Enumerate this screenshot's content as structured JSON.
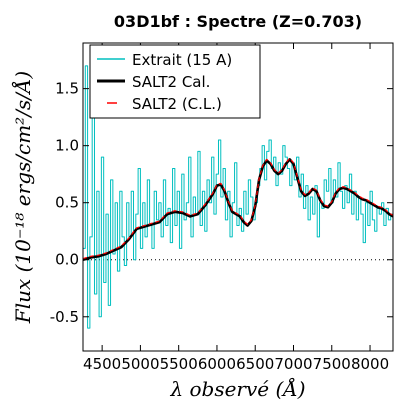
{
  "chart_data": {
    "type": "line",
    "title": "03D1bf : Spectre (Z=0.703)",
    "xlabel": "λ observé (Å)",
    "ylabel": "Flux (10⁻¹⁸ ergs/cm²/s/Å)",
    "xlim": [
      4250,
      8300
    ],
    "ylim": [
      -0.8,
      1.9
    ],
    "xticks": [
      4500,
      5000,
      5500,
      6000,
      6500,
      7000,
      7500,
      8000
    ],
    "xtick_labels": [
      "4500",
      "5000",
      "5500",
      "6000",
      "6500",
      "7000",
      "7500",
      "8000"
    ],
    "yticks": [
      -0.5,
      0.0,
      0.5,
      1.0,
      1.5
    ],
    "ytick_labels": [
      "-0.5",
      "0.0",
      "0.5",
      "1.0",
      "1.5"
    ],
    "zero_line": true,
    "legend_position": "top-left",
    "series": [
      {
        "name": "Extrait (15 A)",
        "color": "#00bfbf",
        "style": "steps",
        "x": [
          4250,
          4280,
          4310,
          4340,
          4370,
          4400,
          4430,
          4460,
          4490,
          4520,
          4550,
          4580,
          4610,
          4640,
          4670,
          4700,
          4730,
          4760,
          4790,
          4820,
          4850,
          4880,
          4910,
          4940,
          4970,
          5000,
          5030,
          5060,
          5090,
          5120,
          5150,
          5180,
          5210,
          5240,
          5270,
          5300,
          5330,
          5360,
          5390,
          5420,
          5450,
          5480,
          5510,
          5540,
          5570,
          5600,
          5630,
          5660,
          5690,
          5720,
          5750,
          5780,
          5810,
          5840,
          5870,
          5900,
          5930,
          5960,
          5990,
          6020,
          6050,
          6080,
          6110,
          6140,
          6170,
          6200,
          6230,
          6260,
          6290,
          6320,
          6350,
          6380,
          6410,
          6440,
          6470,
          6500,
          6530,
          6560,
          6590,
          6620,
          6650,
          6680,
          6710,
          6740,
          6770,
          6800,
          6830,
          6860,
          6890,
          6920,
          6950,
          6980,
          7010,
          7040,
          7070,
          7100,
          7130,
          7160,
          7190,
          7220,
          7250,
          7280,
          7310,
          7340,
          7370,
          7400,
          7430,
          7460,
          7490,
          7520,
          7550,
          7580,
          7610,
          7640,
          7670,
          7700,
          7730,
          7760,
          7790,
          7820,
          7850,
          7880,
          7910,
          7940,
          7970,
          8000,
          8030,
          8060,
          8090,
          8120,
          8150,
          8180,
          8210,
          8240,
          8270,
          8300
        ],
        "y": [
          0.1,
          1.7,
          -0.6,
          0.2,
          1.3,
          -0.3,
          0.6,
          -0.5,
          0.9,
          -0.2,
          0.4,
          -0.4,
          0.7,
          0.05,
          0.5,
          -0.1,
          0.6,
          0.2,
          -0.05,
          0.5,
          0.2,
          0.6,
          0.0,
          0.4,
          0.8,
          0.1,
          0.5,
          0.2,
          0.7,
          0.3,
          0.1,
          0.6,
          0.35,
          0.5,
          0.2,
          0.7,
          0.3,
          0.45,
          0.15,
          0.8,
          0.3,
          0.6,
          0.1,
          0.75,
          0.35,
          0.5,
          0.9,
          0.2,
          0.55,
          0.4,
          0.95,
          0.3,
          0.6,
          0.25,
          0.7,
          0.5,
          0.9,
          0.4,
          0.75,
          1.05,
          0.55,
          0.8,
          0.35,
          0.6,
          0.2,
          0.5,
          0.85,
          0.3,
          0.45,
          0.25,
          0.6,
          0.4,
          0.7,
          0.55,
          0.35,
          0.5,
          0.65,
          0.8,
          1.0,
          0.7,
          0.95,
          1.05,
          0.8,
          0.9,
          0.65,
          0.85,
          0.75,
          1.0,
          0.9,
          0.8,
          0.65,
          0.85,
          0.7,
          0.9,
          0.55,
          0.75,
          0.45,
          0.65,
          0.35,
          0.55,
          0.4,
          0.65,
          0.2,
          0.5,
          0.45,
          0.7,
          0.6,
          0.8,
          0.5,
          0.7,
          0.55,
          0.85,
          0.6,
          0.45,
          0.65,
          0.5,
          0.75,
          0.4,
          0.6,
          0.35,
          0.55,
          0.4,
          0.15,
          0.5,
          0.3,
          0.6,
          0.35,
          0.25,
          0.45,
          0.4,
          0.5,
          0.3,
          0.45,
          0.35,
          0.4,
          0.35
        ]
      },
      {
        "name": "SALT2 Cal.",
        "color": "#000000",
        "style": "solid",
        "x": [
          4250,
          4350,
          4450,
          4550,
          4650,
          4750,
          4850,
          4950,
          5050,
          5150,
          5250,
          5350,
          5450,
          5550,
          5650,
          5750,
          5850,
          5950,
          6000,
          6050,
          6100,
          6150,
          6200,
          6250,
          6300,
          6350,
          6400,
          6450,
          6500,
          6550,
          6600,
          6650,
          6700,
          6750,
          6800,
          6850,
          6900,
          6950,
          7000,
          7050,
          7100,
          7150,
          7200,
          7250,
          7300,
          7350,
          7400,
          7450,
          7500,
          7550,
          7600,
          7650,
          7700,
          7750,
          7800,
          7850,
          7900,
          7950,
          8000,
          8050,
          8100,
          8150,
          8200,
          8250,
          8300
        ],
        "y": [
          0.0,
          0.02,
          0.03,
          0.05,
          0.08,
          0.11,
          0.18,
          0.27,
          0.29,
          0.31,
          0.33,
          0.4,
          0.42,
          0.41,
          0.38,
          0.4,
          0.48,
          0.58,
          0.65,
          0.66,
          0.6,
          0.5,
          0.42,
          0.4,
          0.38,
          0.33,
          0.3,
          0.34,
          0.47,
          0.7,
          0.82,
          0.87,
          0.84,
          0.78,
          0.75,
          0.78,
          0.84,
          0.88,
          0.84,
          0.72,
          0.6,
          0.56,
          0.58,
          0.62,
          0.6,
          0.52,
          0.47,
          0.46,
          0.5,
          0.58,
          0.62,
          0.63,
          0.62,
          0.6,
          0.58,
          0.55,
          0.53,
          0.52,
          0.5,
          0.48,
          0.46,
          0.45,
          0.43,
          0.4,
          0.38
        ]
      },
      {
        "name": "SALT2 (C.L.)",
        "color": "#ff0000",
        "style": "dashed",
        "x": [
          4250,
          4350,
          4450,
          4550,
          4650,
          4750,
          4850,
          4950,
          5050,
          5150,
          5250,
          5350,
          5450,
          5550,
          5650,
          5750,
          5850,
          5950,
          6000,
          6050,
          6100,
          6150,
          6200,
          6250,
          6300,
          6350,
          6400,
          6450,
          6500,
          6550,
          6600,
          6650,
          6700,
          6750,
          6800,
          6850,
          6900,
          6950,
          7000,
          7050,
          7100,
          7150,
          7200,
          7250,
          7300,
          7350,
          7400,
          7450,
          7500,
          7550,
          7600,
          7650,
          7700,
          7750,
          7800,
          7850,
          7900,
          7950,
          8000,
          8050,
          8100,
          8150,
          8200,
          8250,
          8300
        ],
        "y": [
          0.01,
          0.03,
          0.04,
          0.06,
          0.09,
          0.12,
          0.19,
          0.28,
          0.3,
          0.32,
          0.34,
          0.41,
          0.43,
          0.42,
          0.39,
          0.41,
          0.49,
          0.59,
          0.66,
          0.67,
          0.61,
          0.51,
          0.43,
          0.41,
          0.39,
          0.34,
          0.31,
          0.35,
          0.48,
          0.71,
          0.83,
          0.88,
          0.85,
          0.79,
          0.76,
          0.79,
          0.85,
          0.89,
          0.85,
          0.73,
          0.61,
          0.57,
          0.59,
          0.63,
          0.61,
          0.53,
          0.48,
          0.47,
          0.51,
          0.59,
          0.63,
          0.64,
          0.63,
          0.61,
          0.59,
          0.56,
          0.54,
          0.53,
          0.51,
          0.49,
          0.47,
          0.46,
          0.44,
          0.41,
          0.39
        ]
      }
    ]
  }
}
